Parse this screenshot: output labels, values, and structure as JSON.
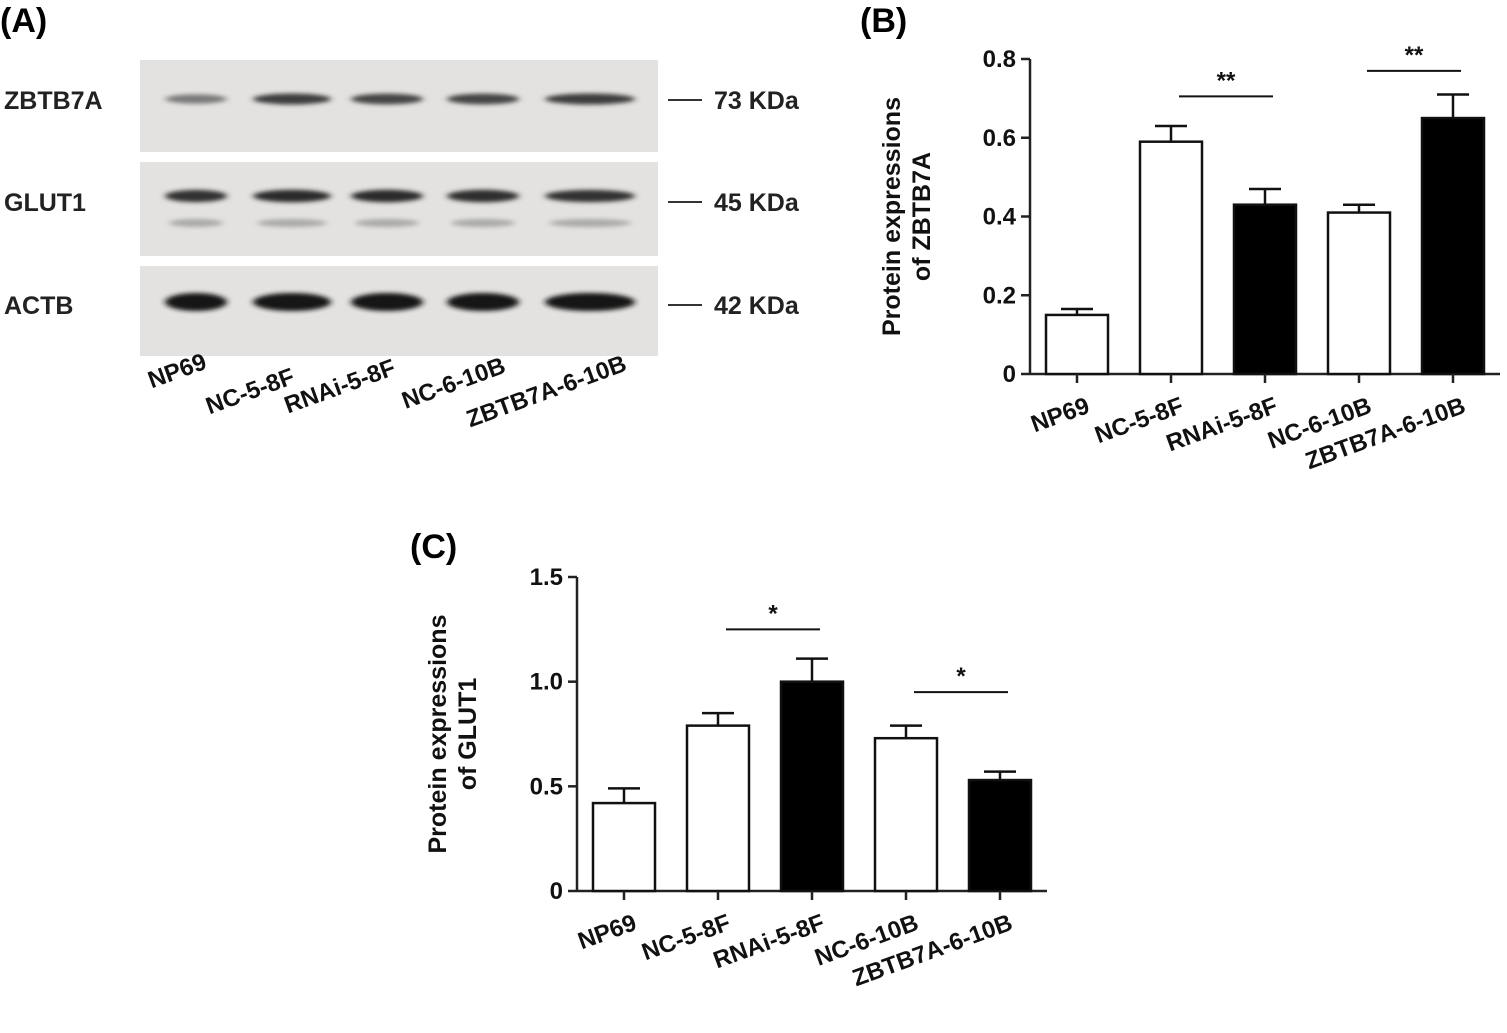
{
  "panel_labels": {
    "a": "(A)",
    "b": "(B)",
    "c": "(C)"
  },
  "blot": {
    "lanes": [
      "NP69",
      "NC-5-8F",
      "RNAi-5-8F",
      "NC-6-10B",
      "ZBTB7A-6-10B"
    ],
    "rows": [
      {
        "protein": "ZBTB7A",
        "size": "73 KDa",
        "band_intensity": [
          0.45,
          0.8,
          0.75,
          0.75,
          0.8
        ]
      },
      {
        "protein": "GLUT1",
        "size": "45 KDa",
        "band_intensity": [
          0.85,
          0.9,
          0.9,
          0.88,
          0.85
        ]
      },
      {
        "protein": "ACTB",
        "size": "42 KDa",
        "band_intensity": [
          1.0,
          1.0,
          1.0,
          1.0,
          1.0
        ]
      }
    ]
  },
  "chart_data": [
    {
      "id": "B",
      "type": "bar",
      "categories": [
        "NP69",
        "NC-5-8F",
        "RNAi-5-8F",
        "NC-6-10B",
        "ZBTB7A-6-10B"
      ],
      "values": [
        0.15,
        0.59,
        0.43,
        0.41,
        0.65
      ],
      "errors": [
        0.015,
        0.04,
        0.04,
        0.02,
        0.06
      ],
      "fills": [
        "#ffffff",
        "#ffffff",
        "#000000",
        "#ffffff",
        "#000000"
      ],
      "ylabel_line1": "Protein expressions",
      "ylabel_line2": "of ZBTB7A",
      "ylim": [
        0,
        0.8
      ],
      "yticks": [
        0,
        0.2,
        0.4,
        0.6,
        0.8
      ],
      "ytick_labels": [
        "0",
        "0.2",
        "0.4",
        "0.6",
        "0.8"
      ],
      "significance": [
        {
          "from": 1,
          "to": 2,
          "label": "**",
          "y": 0.705
        },
        {
          "from": 3,
          "to": 4,
          "label": "**",
          "y": 0.77
        }
      ]
    },
    {
      "id": "C",
      "type": "bar",
      "categories": [
        "NP69",
        "NC-5-8F",
        "RNAi-5-8F",
        "NC-6-10B",
        "ZBTB7A-6-10B"
      ],
      "values": [
        0.42,
        0.79,
        1.0,
        0.73,
        0.53
      ],
      "errors": [
        0.07,
        0.06,
        0.11,
        0.06,
        0.04
      ],
      "fills": [
        "#ffffff",
        "#ffffff",
        "#000000",
        "#ffffff",
        "#000000"
      ],
      "ylabel_line1": "Protein expressions",
      "ylabel_line2": "of GLUT1",
      "ylim": [
        0,
        1.5
      ],
      "yticks": [
        0,
        0.5,
        1.0,
        1.5
      ],
      "ytick_labels": [
        "0",
        "0.5",
        "1.0",
        "1.5"
      ],
      "significance": [
        {
          "from": 1,
          "to": 2,
          "label": "*",
          "y": 1.25
        },
        {
          "from": 3,
          "to": 4,
          "label": "*",
          "y": 0.95
        }
      ]
    }
  ]
}
